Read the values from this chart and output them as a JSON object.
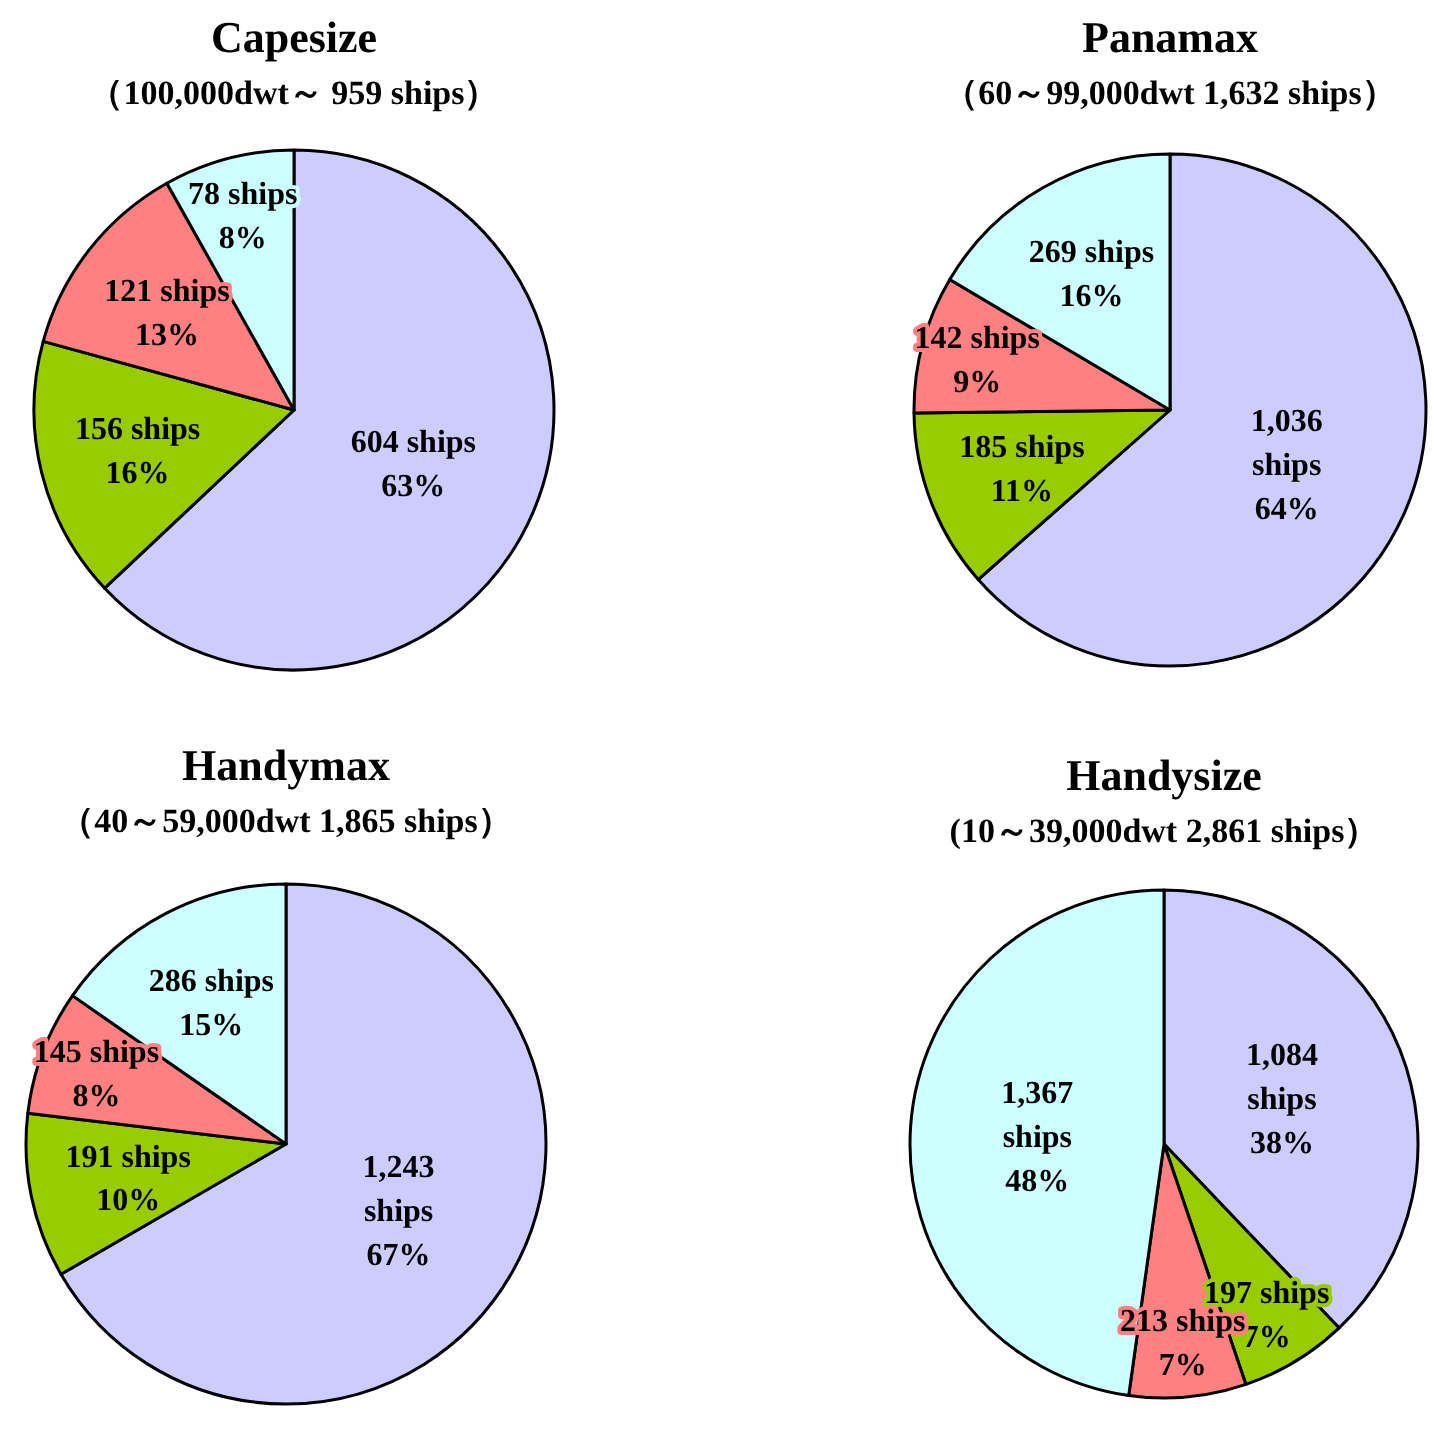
{
  "chart_data": [
    {
      "type": "pie",
      "title": "Capesize",
      "subtitle": "（100,000dwt～  959 ships）",
      "categories": [
        null,
        null,
        null,
        null
      ],
      "values": [
        604,
        156,
        121,
        78
      ],
      "colors": [
        "#ccccff",
        "#99cc00",
        "#ff8080",
        "#ccffff"
      ],
      "value_labels": [
        "604 ships\n63%",
        "156 ships\n16%",
        "121 ships\n13%",
        "78 ships\n8%"
      ]
    },
    {
      "type": "pie",
      "title": "Panamax",
      "subtitle": "（60～99,000dwt   1,632 ships）",
      "categories": [
        null,
        null,
        null,
        null
      ],
      "values": [
        1036,
        185,
        142,
        269
      ],
      "colors": [
        "#ccccff",
        "#99cc00",
        "#ff8080",
        "#ccffff"
      ],
      "value_labels": [
        "1,036\nships\n64%",
        "185 ships\n11%",
        "142 ships\n9%",
        "269 ships\n16%"
      ]
    },
    {
      "type": "pie",
      "title": "Handymax",
      "subtitle": "（40～59,000dwt   1,865 ships）",
      "categories": [
        null,
        null,
        null,
        null
      ],
      "values": [
        1243,
        191,
        145,
        286
      ],
      "colors": [
        "#ccccff",
        "#99cc00",
        "#ff8080",
        "#ccffff"
      ],
      "value_labels": [
        "1,243\nships\n67%",
        "191 ships\n10%",
        "145 ships\n8%",
        "286 ships\n15%"
      ]
    },
    {
      "type": "pie",
      "title": "Handysize",
      "subtitle": "(10～39,000dwt  2,861 ships）",
      "categories": [
        null,
        null,
        null,
        null
      ],
      "values": [
        1084,
        197,
        213,
        1367
      ],
      "colors": [
        "#ccccff",
        "#99cc00",
        "#ff8080",
        "#ccffff"
      ],
      "value_labels": [
        "1,084\nships\n38%",
        "197 ships\n7%",
        "213 ships\n7%",
        "1,367\nships\n48%"
      ]
    }
  ]
}
